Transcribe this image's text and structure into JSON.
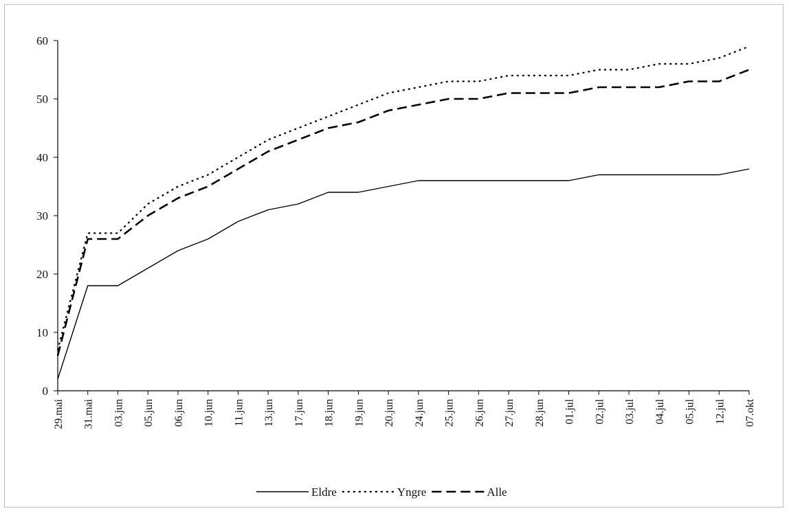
{
  "chart_data": {
    "type": "line",
    "title": "",
    "xlabel": "",
    "ylabel": "",
    "ylim": [
      0,
      60
    ],
    "yticks": [
      0,
      10,
      20,
      30,
      40,
      50,
      60
    ],
    "grid": false,
    "legend_placement": "bottom-center",
    "categories": [
      "29.mai",
      "31.mai",
      "03.jun",
      "05.jun",
      "06.jun",
      "10.jun",
      "11.jun",
      "13.jun",
      "17.jun",
      "18.jun",
      "19.jun",
      "20.jun",
      "24.jun",
      "25.jun",
      "26.jun",
      "27.jun",
      "28.jun",
      "01.jul",
      "02.jul",
      "03.jul",
      "04.jul",
      "05.jul",
      "12.jul",
      "07.okt"
    ],
    "series": [
      {
        "name": "Eldre",
        "style": "solid",
        "color": "#000000",
        "values": [
          2,
          18,
          18,
          21,
          24,
          26,
          29,
          31,
          32,
          34,
          34,
          35,
          36,
          36,
          36,
          36,
          36,
          36,
          37,
          37,
          37,
          37,
          37,
          38
        ]
      },
      {
        "name": "Yngre",
        "style": "dotted",
        "color": "#000000",
        "values": [
          7,
          27,
          27,
          32,
          35,
          37,
          40,
          43,
          45,
          47,
          49,
          51,
          52,
          53,
          53,
          54,
          54,
          54,
          55,
          55,
          56,
          56,
          57,
          59
        ]
      },
      {
        "name": "Alle",
        "style": "dashed",
        "color": "#000000",
        "values": [
          6,
          26,
          26,
          30,
          33,
          35,
          38,
          41,
          43,
          45,
          46,
          48,
          49,
          50,
          50,
          51,
          51,
          51,
          52,
          52,
          52,
          53,
          53,
          55
        ]
      }
    ]
  }
}
